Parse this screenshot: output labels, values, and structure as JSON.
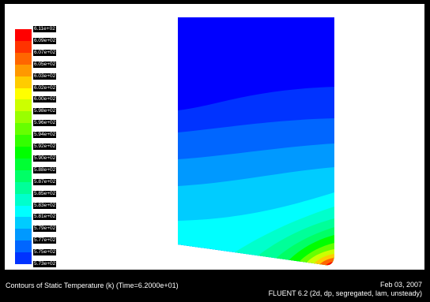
{
  "legend": {
    "labels": [
      "6.11e+02",
      "6.09e+02",
      "6.07e+02",
      "6.05e+02",
      "6.03e+02",
      "6.02e+02",
      "6.00e+02",
      "5.98e+02",
      "5.96e+02",
      "5.94e+02",
      "5.92e+02",
      "5.90e+02",
      "5.88e+02",
      "5.87e+02",
      "5.85e+02",
      "5.83e+02",
      "5.81e+02",
      "5.79e+02",
      "5.77e+02",
      "5.75e+02",
      "5.73e+02"
    ],
    "colors": [
      "#ff0000",
      "#ff3300",
      "#ff6600",
      "#ff9900",
      "#ffcc00",
      "#ffff00",
      "#ccff00",
      "#99ff00",
      "#66ff00",
      "#33ff00",
      "#00ff00",
      "#00ff33",
      "#00ff66",
      "#00ff99",
      "#00ffcc",
      "#00ffff",
      "#00ccff",
      "#0099ff",
      "#0066ff",
      "#0033ff"
    ]
  },
  "contour": {
    "band_colors": [
      "#0000ff",
      "#0033ff",
      "#0066ff",
      "#0099ff",
      "#00ccff",
      "#00ffff",
      "#00ffcc",
      "#00ff99",
      "#00ff66",
      "#00ff00",
      "#66ff00",
      "#ccff00",
      "#ffcc00",
      "#ff6600",
      "#ff0000"
    ]
  },
  "caption": {
    "title": "Contours of Static Temperature (k)  (Time=6.2000e+01)",
    "date": "Feb 03, 2007",
    "version": "FLUENT 6.2 (2d, dp, segregated, lam, unsteady)"
  }
}
